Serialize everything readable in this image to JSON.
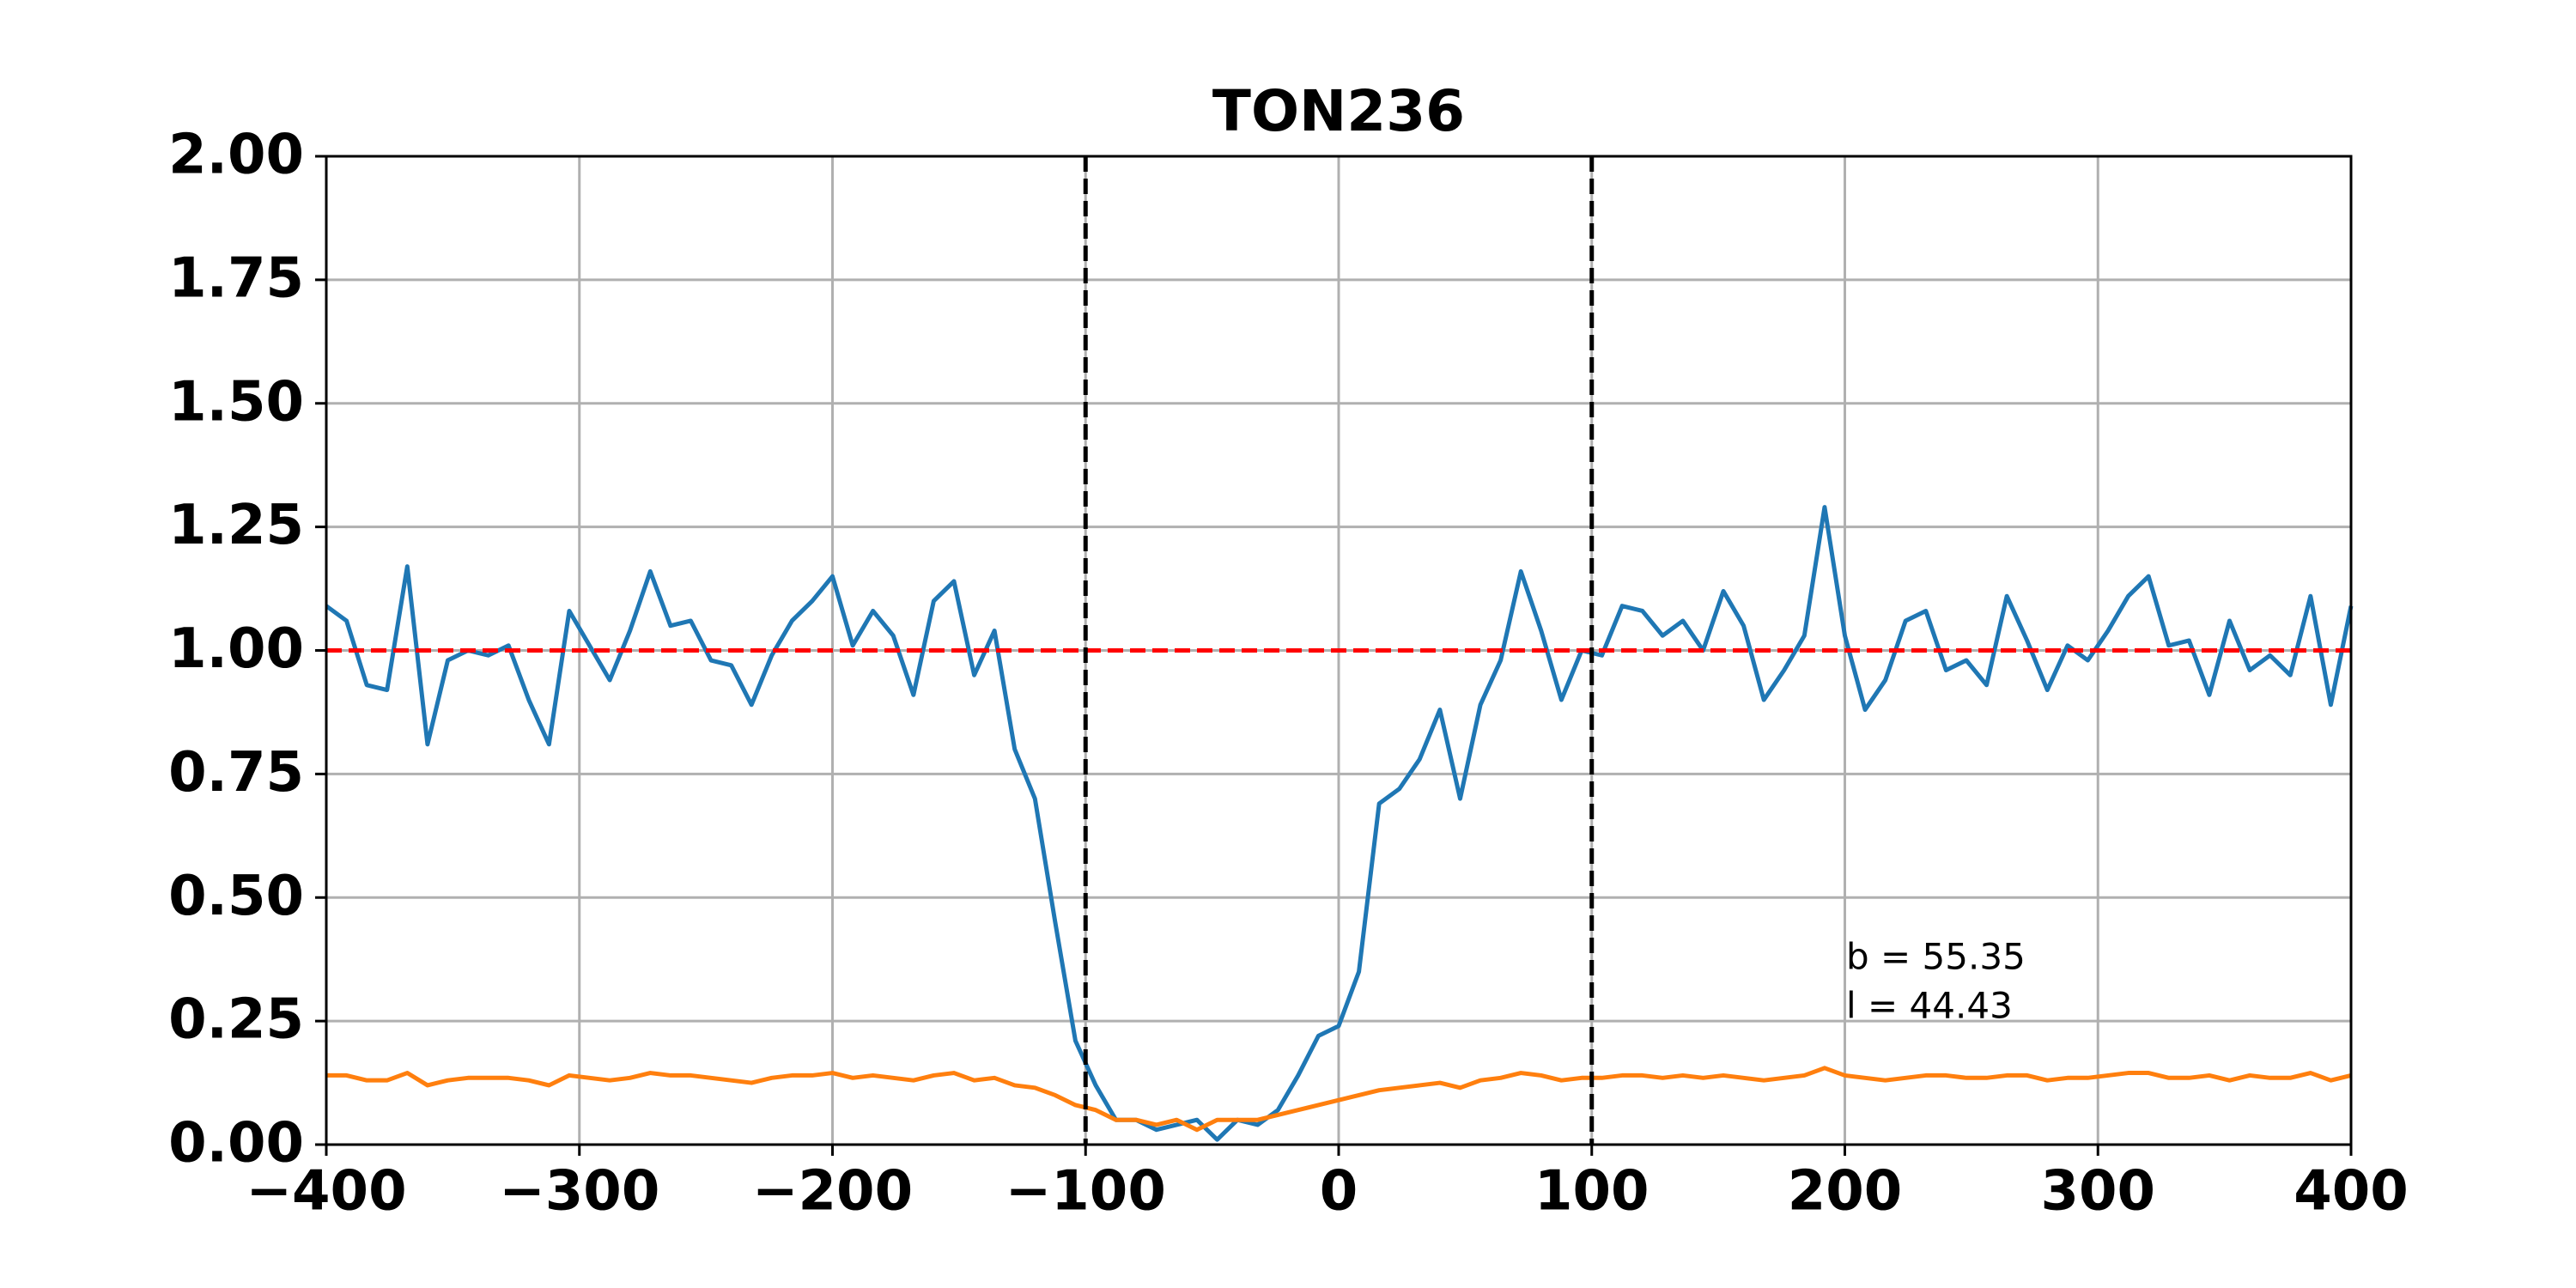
{
  "chart_data": {
    "type": "line",
    "title": "TON236",
    "x": [
      -400,
      -392,
      -384,
      -376,
      -368,
      -360,
      -352,
      -344,
      -336,
      -328,
      -320,
      -312,
      -304,
      -296,
      -288,
      -280,
      -272,
      -264,
      -256,
      -248,
      -240,
      -232,
      -224,
      -216,
      -208,
      -200,
      -192,
      -184,
      -176,
      -168,
      -160,
      -152,
      -144,
      -136,
      -128,
      -120,
      -112,
      -104,
      -96,
      -88,
      -80,
      -72,
      -64,
      -56,
      -48,
      -40,
      -32,
      -24,
      -16,
      -8,
      0,
      8,
      16,
      24,
      32,
      40,
      48,
      56,
      64,
      72,
      80,
      88,
      96,
      104,
      112,
      120,
      128,
      136,
      144,
      152,
      160,
      168,
      176,
      184,
      192,
      200,
      208,
      216,
      224,
      232,
      240,
      248,
      256,
      264,
      272,
      280,
      288,
      296,
      304,
      312,
      320,
      328,
      336,
      344,
      352,
      360,
      368,
      376,
      384,
      392,
      400
    ],
    "series": [
      {
        "color": "#1f77b4",
        "values": [
          1.09,
          1.06,
          0.93,
          0.92,
          1.17,
          0.81,
          0.98,
          1.0,
          0.99,
          1.01,
          0.9,
          0.81,
          1.08,
          1.01,
          0.94,
          1.04,
          1.16,
          1.05,
          1.06,
          0.98,
          0.97,
          0.89,
          0.99,
          1.06,
          1.1,
          1.15,
          1.01,
          1.08,
          1.03,
          0.91,
          1.1,
          1.14,
          0.95,
          1.04,
          0.8,
          0.7,
          0.45,
          0.21,
          0.12,
          0.05,
          0.05,
          0.03,
          0.04,
          0.05,
          0.01,
          0.05,
          0.04,
          0.07,
          0.14,
          0.22,
          0.24,
          0.35,
          0.69,
          0.72,
          0.78,
          0.88,
          0.7,
          0.89,
          0.98,
          1.16,
          1.04,
          0.9,
          1.0,
          0.99,
          1.09,
          1.08,
          1.03,
          1.06,
          1.0,
          1.12,
          1.05,
          0.9,
          0.96,
          1.03,
          1.29,
          1.03,
          0.88,
          0.94,
          1.06,
          1.08,
          0.96,
          0.98,
          0.93,
          1.11,
          1.02,
          0.92,
          1.01,
          0.98,
          1.04,
          1.11,
          1.15,
          1.01,
          1.02,
          0.91,
          1.06,
          0.96,
          0.99,
          0.95,
          1.11,
          0.89,
          1.09
        ]
      },
      {
        "color": "#ff7f0e",
        "values": [
          0.14,
          0.14,
          0.13,
          0.13,
          0.145,
          0.12,
          0.13,
          0.135,
          0.135,
          0.135,
          0.13,
          0.12,
          0.14,
          0.135,
          0.13,
          0.135,
          0.145,
          0.14,
          0.14,
          0.135,
          0.13,
          0.125,
          0.135,
          0.14,
          0.14,
          0.145,
          0.135,
          0.14,
          0.135,
          0.13,
          0.14,
          0.145,
          0.13,
          0.135,
          0.12,
          0.115,
          0.1,
          0.08,
          0.07,
          0.05,
          0.05,
          0.04,
          0.05,
          0.03,
          0.05,
          0.05,
          0.05,
          0.06,
          0.07,
          0.08,
          0.09,
          0.1,
          0.11,
          0.115,
          0.12,
          0.125,
          0.115,
          0.13,
          0.135,
          0.145,
          0.14,
          0.13,
          0.135,
          0.135,
          0.14,
          0.14,
          0.135,
          0.14,
          0.135,
          0.14,
          0.135,
          0.13,
          0.135,
          0.14,
          0.155,
          0.14,
          0.135,
          0.13,
          0.135,
          0.14,
          0.14,
          0.135,
          0.135,
          0.14,
          0.14,
          0.13,
          0.135,
          0.135,
          0.14,
          0.145,
          0.145,
          0.135,
          0.135,
          0.14,
          0.13,
          0.14,
          0.135,
          0.135,
          0.145,
          0.13,
          0.14
        ]
      }
    ],
    "hlines": [
      {
        "y": 1,
        "color": "#ff0000"
      }
    ],
    "vlines": [
      {
        "x": -100,
        "color": "#000000"
      },
      {
        "x": 100,
        "color": "#000000"
      }
    ],
    "annotations": [
      "b = 55.35",
      "l = 44.43"
    ],
    "xlim": [
      -400,
      400
    ],
    "xticks": [
      {
        "value": -400,
        "label": "−400"
      },
      {
        "value": -300,
        "label": "−300"
      },
      {
        "value": -200,
        "label": "−200"
      },
      {
        "value": -100,
        "label": "−100"
      },
      0,
      100,
      200,
      300,
      400
    ],
    "ylim": [
      0,
      2
    ],
    "yticks": [
      {
        "value": 0,
        "label": "0.00"
      },
      {
        "value": 0.25,
        "label": "0.25"
      },
      {
        "value": 0.5,
        "label": "0.50"
      },
      {
        "value": 0.75,
        "label": "0.75"
      },
      {
        "value": 1,
        "label": "1.00"
      },
      {
        "value": 1.25,
        "label": "1.25"
      },
      {
        "value": 1.5,
        "label": "1.50"
      },
      {
        "value": 1.75,
        "label": "1.75"
      },
      {
        "value": 2,
        "label": "2.00"
      }
    ],
    "grid": true
  }
}
